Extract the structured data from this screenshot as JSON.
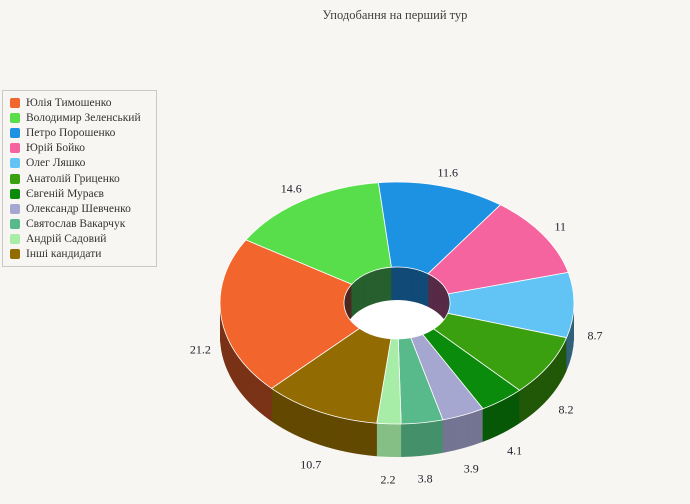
{
  "page": {
    "background": "#f8f6f2"
  },
  "chart_data": {
    "type": "pie",
    "subtype": "3d-donut",
    "title": "Уподобання на перший тур",
    "legend_position": "left",
    "start_angle_deg": -134.9,
    "inner_radius_pct": 30,
    "grid": false,
    "label_color": "#22222e",
    "legend_text_color": "#333333",
    "hole_color": "#ffffff",
    "slices": [
      {
        "name": "Юлія Тимошенко",
        "value": 21.2,
        "color": "#f2652d"
      },
      {
        "name": "Володимир Зеленський",
        "value": 14.6,
        "color": "#58de4a"
      },
      {
        "name": "Петро Порошенко",
        "value": 11.6,
        "color": "#1d92e3"
      },
      {
        "name": "Юрій Бойко",
        "value": 11,
        "color": "#f6649f"
      },
      {
        "name": "Олег Ляшко",
        "value": 8.7,
        "color": "#61c4f4"
      },
      {
        "name": "Анатолій Гриценко",
        "value": 8.2,
        "color": "#3aa00f"
      },
      {
        "name": "Євгеній Мураєв",
        "value": 4.1,
        "color": "#0b8b0b"
      },
      {
        "name": "Олександр Шевченко",
        "value": 3.9,
        "color": "#a6a7d0"
      },
      {
        "name": "Святослав Вакарчук",
        "value": 3.8,
        "color": "#58ba8a"
      },
      {
        "name": "Андрій Садовий",
        "value": 2.2,
        "color": "#a7eda7"
      },
      {
        "name": "Інші кандидати",
        "value": 10.7,
        "color": "#926c02"
      }
    ]
  }
}
